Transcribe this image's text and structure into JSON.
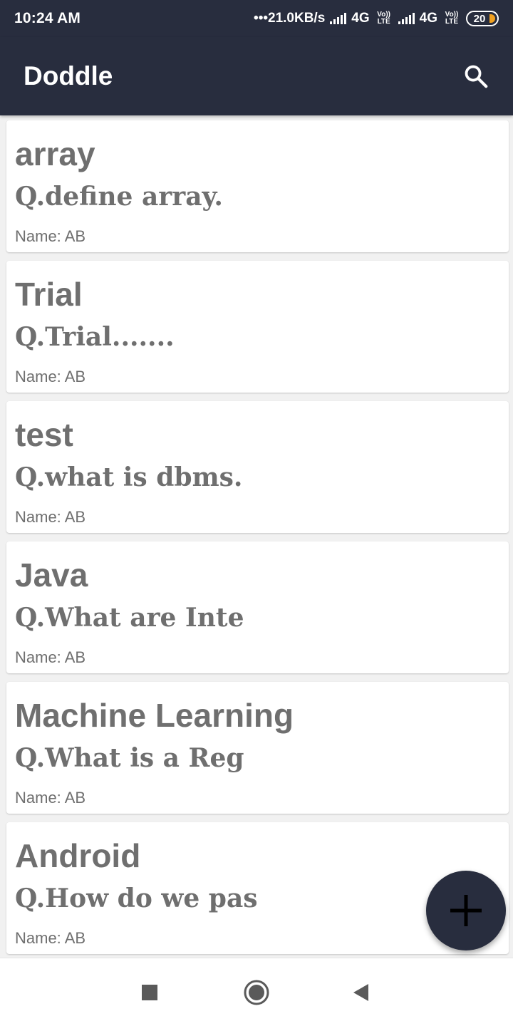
{
  "status_bar": {
    "time": "10:24 AM",
    "network_speed": "•••21.0KB/s",
    "sim1_type": "4G",
    "sim1_volte": "Vo)) LTE",
    "sim2_type": "4G",
    "sim2_volte": "Vo)) LTE",
    "battery": "20",
    "battery_color": "#f0a020"
  },
  "app_bar": {
    "title": "Doddle",
    "search_icon": "search-icon",
    "background": "#282d3e"
  },
  "posts": [
    {
      "title": "array",
      "question": "Q.define array.",
      "name": "Name: AB"
    },
    {
      "title": "Trial",
      "question": "Q.Trial.......",
      "name": "Name: AB"
    },
    {
      "title": "test",
      "question": "Q.what is dbms.",
      "name": "Name: AB"
    },
    {
      "title": "Java",
      "question": "Q.What are Inte",
      "name": "Name: AB"
    },
    {
      "title": "Machine Learning",
      "question": "Q.What is a Reg",
      "name": "Name: AB"
    },
    {
      "title": "Android",
      "question": "Q.How do we pas",
      "name": "Name: AB"
    }
  ],
  "fab": {
    "icon": "plus-icon"
  },
  "nav_bar": {
    "recents_icon": "square-icon",
    "home_icon": "circle-icon",
    "back_icon": "triangle-back-icon"
  }
}
